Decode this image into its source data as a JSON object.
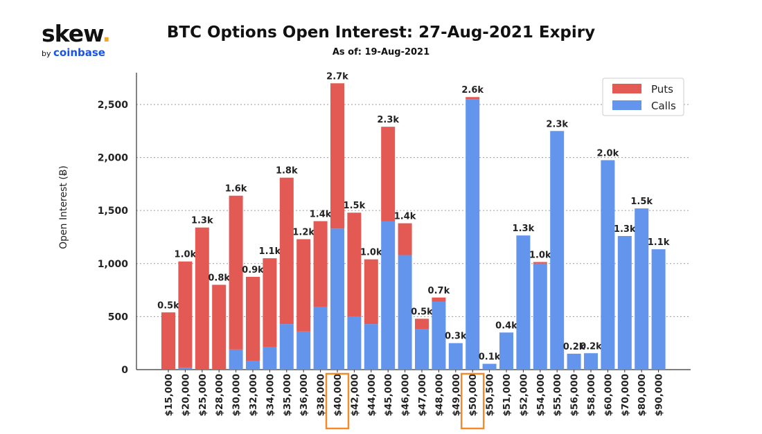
{
  "brand": {
    "name": "skew",
    "dot": ".",
    "by": "by",
    "partner": "coinbase"
  },
  "header": {
    "title": "BTC Options Open Interest: 27-Aug-2021 Expiry",
    "subtitle": "As of: 19-Aug-2021"
  },
  "colors": {
    "puts": "#e35a55",
    "calls": "#6495ed",
    "highlight": "#f08c2c"
  },
  "chart_data": {
    "type": "bar",
    "stacked": true,
    "ylabel": "Open Interest (Ƀ)",
    "xlabel": "",
    "ylim": [
      0,
      2800
    ],
    "yticks": [
      0,
      500,
      1000,
      1500,
      2000,
      2500
    ],
    "ytick_labels": [
      "0",
      "500",
      "1,000",
      "1,500",
      "2,000",
      "2,500"
    ],
    "grid": "horizontal-dotted",
    "legend_position": "top-right",
    "categories": [
      "$15,000",
      "$20,000",
      "$25,000",
      "$28,000",
      "$30,000",
      "$32,000",
      "$34,000",
      "$35,000",
      "$36,000",
      "$38,000",
      "$40,000",
      "$42,000",
      "$44,000",
      "$45,000",
      "$46,000",
      "$47,000",
      "$48,000",
      "$49,000",
      "$50,000",
      "$50,500",
      "$51,000",
      "$52,000",
      "$54,000",
      "$55,000",
      "$56,000",
      "$58,000",
      "$60,000",
      "$70,000",
      "$80,000",
      "$90,000"
    ],
    "series": [
      {
        "name": "Calls",
        "values": [
          0,
          20,
          0,
          0,
          190,
          80,
          210,
          430,
          360,
          590,
          1330,
          500,
          430,
          1400,
          1080,
          380,
          640,
          250,
          2550,
          55,
          350,
          1265,
          1000,
          2250,
          150,
          155,
          1975,
          1260,
          1520,
          1135
        ]
      },
      {
        "name": "Puts",
        "values": [
          540,
          1000,
          1340,
          800,
          1450,
          795,
          840,
          1380,
          870,
          810,
          1370,
          980,
          610,
          890,
          300,
          100,
          40,
          0,
          20,
          0,
          0,
          0,
          15,
          0,
          0,
          0,
          0,
          0,
          0,
          0
        ]
      }
    ],
    "data_labels": [
      "0.5k",
      "1.0k",
      "1.3k",
      "0.8k",
      "1.6k",
      "0.9k",
      "1.1k",
      "1.8k",
      "1.2k",
      "1.4k",
      "2.7k",
      "1.5k",
      "1.0k",
      "2.3k",
      "1.4k",
      "0.5k",
      "0.7k",
      "0.3k",
      "2.6k",
      "0.1k",
      "0.4k",
      "1.3k",
      "1.0k",
      "2.3k",
      "0.2k",
      "0.2k",
      "2.0k",
      "1.3k",
      "1.5k",
      "1.1k"
    ],
    "highlighted_categories": [
      "$40,000",
      "$50,000"
    ]
  }
}
